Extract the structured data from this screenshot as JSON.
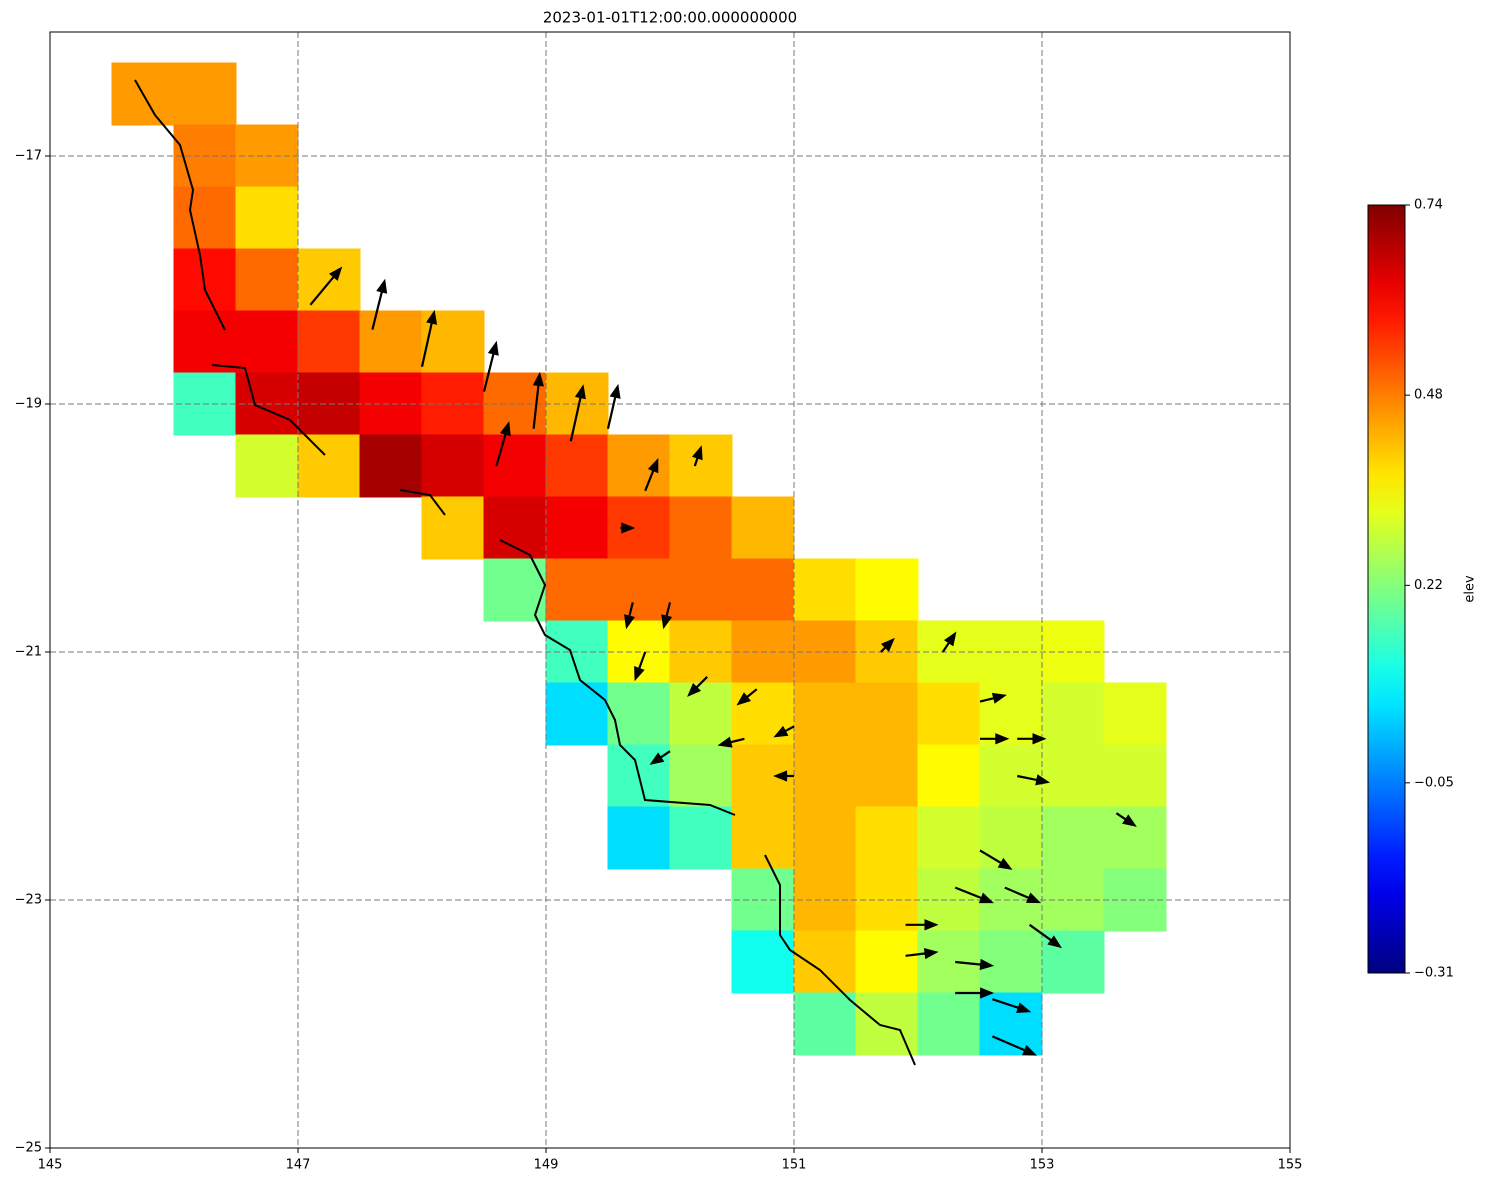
{
  "chart_data": {
    "type": "tripcolor",
    "title": "2023-01-01T12:00:00.000000000",
    "xlim": [
      145,
      155
    ],
    "xticks": [
      145,
      147,
      149,
      151,
      153,
      155
    ],
    "ylim": [
      -25,
      -16
    ],
    "yticks": [
      {
        "value": -17,
        "label": "−17"
      },
      {
        "value": -19,
        "label": "−19"
      },
      {
        "value": -21,
        "label": "−21"
      },
      {
        "value": -23,
        "label": "−23"
      },
      {
        "value": -25,
        "label": "−25"
      }
    ],
    "grid": true,
    "colormap": "jet",
    "colorbar_label": "elev",
    "clim": [
      -0.31,
      0.74
    ],
    "cticks": [
      0.74,
      0.48,
      0.22,
      {
        "value": -0.05,
        "label": "−0.05"
      },
      {
        "value": -0.31,
        "label": "−0.31"
      }
    ],
    "cells": {
      "lon": [
        145.75,
        146.25,
        146.25,
        146.75,
        146.25,
        146.75,
        146.25,
        146.75,
        147.25,
        146.25,
        146.75,
        147.25,
        147.75,
        148.25,
        146.25,
        146.75,
        147.25,
        147.75,
        148.25,
        148.75,
        149.25,
        146.75,
        147.25,
        147.75,
        148.25,
        148.75,
        149.25,
        149.75,
        150.25,
        148.25,
        148.75,
        149.25,
        149.75,
        150.25,
        150.75,
        148.75,
        149.25,
        149.75,
        150.25,
        150.75,
        151.25,
        151.75,
        149.25,
        149.75,
        150.25,
        150.75,
        151.25,
        151.75,
        152.25,
        152.75,
        153.25,
        149.25,
        149.75,
        150.25,
        150.75,
        151.25,
        151.75,
        152.25,
        152.75,
        153.25,
        153.75,
        149.75,
        150.25,
        150.75,
        151.25,
        151.75,
        152.25,
        152.75,
        153.25,
        153.75,
        149.75,
        150.25,
        150.75,
        151.25,
        151.75,
        152.25,
        152.75,
        153.25,
        153.75,
        150.75,
        151.25,
        151.75,
        152.25,
        152.75,
        153.25,
        153.75,
        150.75,
        151.25,
        151.75,
        152.25,
        152.75,
        153.25,
        151.25,
        151.75,
        152.25,
        152.75
      ],
      "lat": [
        -16.5,
        -16.5,
        -17,
        -17,
        -17.5,
        -17.5,
        -18,
        -18,
        -18,
        -18.5,
        -18.5,
        -18.5,
        -18.5,
        -18.5,
        -19,
        -19,
        -19,
        -19,
        -19,
        -19,
        -19,
        -19.5,
        -19.5,
        -19.5,
        -19.5,
        -19.5,
        -19.5,
        -19.5,
        -19.5,
        -20,
        -20,
        -20,
        -20,
        -20,
        -20,
        -20.5,
        -20.5,
        -20.5,
        -20.5,
        -20.5,
        -20.5,
        -20.5,
        -21,
        -21,
        -21,
        -21,
        -21,
        -21,
        -21,
        -21,
        -21,
        -21.5,
        -21.5,
        -21.5,
        -21.5,
        -21.5,
        -21.5,
        -21.5,
        -21.5,
        -21.5,
        -21.5,
        -22,
        -22,
        -22,
        -22,
        -22,
        -22,
        -22,
        -22,
        -22,
        -22.5,
        -22.5,
        -22.5,
        -22.5,
        -22.5,
        -22.5,
        -22.5,
        -22.5,
        -22.5,
        -23,
        -23,
        -23,
        -23,
        -23,
        -23,
        -23,
        -23.5,
        -23.5,
        -23.5,
        -23.5,
        -23.5,
        -23.5,
        -24,
        -24,
        -24,
        -24
      ],
      "elev": [
        0.45,
        0.45,
        0.48,
        0.45,
        0.5,
        0.38,
        0.6,
        0.5,
        0.4,
        0.62,
        0.62,
        0.55,
        0.45,
        0.42,
        0.15,
        0.65,
        0.67,
        0.62,
        0.58,
        0.5,
        0.42,
        0.3,
        0.4,
        0.7,
        0.65,
        0.62,
        0.55,
        0.45,
        0.4,
        0.4,
        0.65,
        0.62,
        0.55,
        0.5,
        0.42,
        0.2,
        0.5,
        0.5,
        0.5,
        0.5,
        0.38,
        0.35,
        0.15,
        0.35,
        0.4,
        0.45,
        0.45,
        0.4,
        0.32,
        0.32,
        0.33,
        0.05,
        0.2,
        0.28,
        0.38,
        0.42,
        0.42,
        0.38,
        0.32,
        0.3,
        0.32,
        0.15,
        0.25,
        0.4,
        0.42,
        0.42,
        0.35,
        0.3,
        0.3,
        0.3,
        0.05,
        0.15,
        0.4,
        0.42,
        0.38,
        0.3,
        0.28,
        0.25,
        0.25,
        0.2,
        0.42,
        0.38,
        0.28,
        0.25,
        0.25,
        0.22,
        0.1,
        0.4,
        0.35,
        0.25,
        0.22,
        0.18,
        0.18,
        0.28,
        0.2,
        0.05
      ]
    },
    "arrows": {
      "lon": [
        147.1,
        147.6,
        148.0,
        148.5,
        148.9,
        149.2,
        149.5,
        148.6,
        149.8,
        150.2,
        149.6,
        149.7,
        150.0,
        149.8,
        150.3,
        150.7,
        151.0,
        150.6,
        150.0,
        151.0,
        151.7,
        152.2,
        152.5,
        152.5,
        152.8,
        152.8,
        152.5,
        152.3,
        152.7,
        152.9,
        151.9,
        152.3,
        151.9,
        152.3,
        152.6,
        152.6,
        153.6
      ],
      "lat": [
        -18.2,
        -18.4,
        -18.7,
        -18.9,
        -19.2,
        -19.3,
        -19.2,
        -19.5,
        -19.7,
        -19.5,
        -20.0,
        -20.6,
        -20.6,
        -21.0,
        -21.2,
        -21.3,
        -21.6,
        -21.7,
        -21.8,
        -22.0,
        -21.0,
        -21.0,
        -21.4,
        -21.7,
        -21.7,
        -22.0,
        -22.6,
        -22.9,
        -22.9,
        -23.2,
        -23.2,
        -23.5,
        -23.45,
        -23.75,
        -23.8,
        -24.1,
        -22.3
      ],
      "u": [
        0.25,
        0.1,
        0.1,
        0.1,
        0.05,
        0.1,
        0.08,
        0.1,
        0.1,
        0.05,
        0.1,
        -0.05,
        -0.05,
        -0.08,
        -0.15,
        -0.15,
        -0.15,
        -0.2,
        -0.15,
        -0.15,
        0.1,
        0.1,
        0.2,
        0.22,
        0.22,
        0.25,
        0.25,
        0.3,
        0.28,
        0.25,
        0.25,
        0.3,
        0.25,
        0.3,
        0.3,
        0.35,
        0.15
      ],
      "v": [
        0.3,
        0.4,
        0.45,
        0.4,
        0.45,
        0.45,
        0.35,
        0.35,
        0.25,
        0.15,
        0.0,
        -0.2,
        -0.2,
        -0.22,
        -0.15,
        -0.12,
        -0.08,
        -0.05,
        -0.1,
        0.0,
        0.1,
        0.15,
        0.05,
        0.0,
        0.0,
        -0.05,
        -0.15,
        -0.12,
        -0.12,
        -0.18,
        0.0,
        -0.03,
        0.03,
        0.0,
        -0.1,
        -0.15,
        -0.1
      ]
    }
  }
}
